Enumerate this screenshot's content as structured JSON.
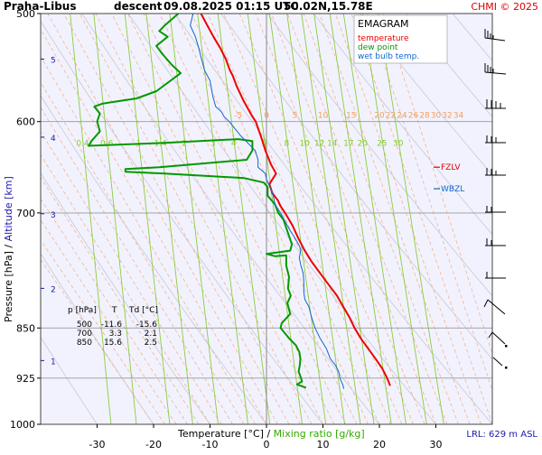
{
  "header": {
    "station": "Praha-Libus",
    "mode": "descent",
    "datetime": "09.08.2025 01:15 UTC",
    "location": "50.02N,15.78E",
    "credit": "CHMI © 2025"
  },
  "legend": {
    "title": "EMAGRAM",
    "items": [
      {
        "label": "temperature",
        "color": "#ee0000"
      },
      {
        "label": "dew point",
        "color": "#009900"
      },
      {
        "label": "wet bulb temp.",
        "color": "#1166cc"
      }
    ]
  },
  "axes": {
    "y_label": "Pressure [hPa]",
    "y_label_sep": " / ",
    "alt_label": "Altitude [km]",
    "x_label": "Temperature [°C]",
    "x_label_sep": " / ",
    "mix_label": "Mixing ratio [g/kg]"
  },
  "lrl": "LRL: 629 m ASL",
  "markers": [
    {
      "label": "FZLV",
      "color": "#dd0000",
      "pressure": 648
    },
    {
      "label": "WBZL",
      "color": "#1166cc",
      "pressure": 672
    }
  ],
  "table": {
    "headers": [
      "p [hPa]",
      "T",
      "Td [°C]"
    ],
    "rows": [
      [
        "500",
        "-11.6",
        "-15.6"
      ],
      [
        "700",
        "3.3",
        "2.1"
      ],
      [
        "850",
        "15.6",
        "2.5"
      ]
    ]
  },
  "chart_data": {
    "type": "line",
    "title": "EMAGRAM",
    "xlabel": "Temperature [°C]",
    "ylabel": "Pressure [hPa]",
    "xlim": [
      -40,
      40
    ],
    "ylim": [
      500,
      1000
    ],
    "y_scale": "log",
    "x_ticks": [
      -30,
      -20,
      -10,
      0,
      10,
      20,
      30
    ],
    "p_ticks": [
      500,
      600,
      700,
      850,
      925,
      1000
    ],
    "alt_ticks": [
      {
        "km": "1",
        "p": 898
      },
      {
        "km": "2",
        "p": 795
      },
      {
        "km": "3",
        "p": 701
      },
      {
        "km": "4",
        "p": 616
      },
      {
        "km": "5",
        "p": 540
      }
    ],
    "isotherm_labels": [
      -5,
      0,
      5,
      10,
      15,
      20,
      22,
      24,
      26,
      28,
      30,
      32,
      34
    ],
    "isotherm_label_p": 596,
    "mixing_ratio_labels": [
      "0.4",
      "0.6",
      "1",
      "1.4",
      "2",
      "3",
      "4",
      "6",
      "8",
      "10",
      "12",
      "14",
      "17",
      "20",
      "25",
      "30"
    ],
    "series": [
      {
        "name": "temperature",
        "color": "#ee0000",
        "points": [
          [
            -11.6,
            500
          ],
          [
            -10.5,
            510
          ],
          [
            -9.4,
            520
          ],
          [
            -8.2,
            530
          ],
          [
            -7.2,
            540
          ],
          [
            -6.5,
            550
          ],
          [
            -6.0,
            555
          ],
          [
            -5.3,
            565
          ],
          [
            -4.0,
            580
          ],
          [
            -3.0,
            590
          ],
          [
            -2.5,
            595
          ],
          [
            -1.9,
            600
          ],
          [
            -1.0,
            615
          ],
          [
            -0.2,
            630
          ],
          [
            0.8,
            645
          ],
          [
            1.7,
            655
          ],
          [
            1.2,
            660
          ],
          [
            0.5,
            667
          ],
          [
            0.8,
            672
          ],
          [
            1.0,
            677
          ],
          [
            2.0,
            685
          ],
          [
            2.5,
            692
          ],
          [
            3.3,
            700
          ],
          [
            4.6,
            715
          ],
          [
            5.6,
            730
          ],
          [
            6.7,
            745
          ],
          [
            8.0,
            760
          ],
          [
            9.5,
            775
          ],
          [
            11.0,
            790
          ],
          [
            12.5,
            805
          ],
          [
            13.6,
            820
          ],
          [
            14.7,
            835
          ],
          [
            15.6,
            850
          ],
          [
            16.7,
            865
          ],
          [
            18.0,
            880
          ],
          [
            19.3,
            895
          ],
          [
            20.5,
            910
          ],
          [
            21.2,
            922
          ],
          [
            21.6,
            930
          ],
          [
            21.9,
            937
          ]
        ]
      },
      {
        "name": "dew point",
        "color": "#009900",
        "points": [
          [
            -15.6,
            500
          ],
          [
            -18,
            510
          ],
          [
            -19,
            515
          ],
          [
            -17.5,
            520
          ],
          [
            -19.5,
            528
          ],
          [
            -18.5,
            535
          ],
          [
            -16.8,
            545
          ],
          [
            -15.2,
            553
          ],
          [
            -19.5,
            570
          ],
          [
            -23,
            577
          ],
          [
            -29,
            582
          ],
          [
            -30.5,
            585
          ],
          [
            -29.5,
            592
          ],
          [
            -30,
            600
          ],
          [
            -29.5,
            610
          ],
          [
            -31,
            620
          ],
          [
            -31.5,
            625
          ],
          [
            -18,
            622
          ],
          [
            -5,
            618
          ],
          [
            -2.5,
            620
          ],
          [
            -2.5,
            630
          ],
          [
            -3.5,
            640
          ],
          [
            -19,
            648
          ],
          [
            -25,
            650
          ],
          [
            -25,
            653
          ],
          [
            -18,
            655
          ],
          [
            -4,
            660
          ],
          [
            -0.5,
            665
          ],
          [
            0.2,
            670
          ],
          [
            0.2,
            680
          ],
          [
            1.5,
            690
          ],
          [
            2.1,
            700
          ],
          [
            3.0,
            708
          ],
          [
            3.5,
            718
          ],
          [
            4.0,
            728
          ],
          [
            4.5,
            738
          ],
          [
            4.2,
            746
          ],
          [
            0,
            750
          ],
          [
            1.5,
            753
          ],
          [
            3.5,
            752
          ],
          [
            3.5,
            765
          ],
          [
            4.0,
            780
          ],
          [
            3.8,
            795
          ],
          [
            4.3,
            805
          ],
          [
            3.7,
            815
          ],
          [
            4.2,
            830
          ],
          [
            2.7,
            843
          ],
          [
            2.5,
            850
          ],
          [
            4.0,
            865
          ],
          [
            5.2,
            875
          ],
          [
            5.8,
            885
          ],
          [
            6.0,
            895
          ],
          [
            5.9,
            905
          ],
          [
            5.7,
            915
          ],
          [
            6.0,
            922
          ],
          [
            6.3,
            930
          ],
          [
            5.4,
            935
          ],
          [
            7.0,
            940
          ]
        ]
      },
      {
        "name": "wet bulb temp.",
        "color": "#1166cc",
        "points": [
          [
            -13.0,
            500
          ],
          [
            -13.5,
            510
          ],
          [
            -12.6,
            520
          ],
          [
            -12.0,
            530
          ],
          [
            -11.5,
            540
          ],
          [
            -11.0,
            550
          ],
          [
            -10.0,
            560
          ],
          [
            -9.5,
            575
          ],
          [
            -9.0,
            585
          ],
          [
            -8.0,
            590
          ],
          [
            -7.5,
            595
          ],
          [
            -6.6,
            600
          ],
          [
            -4.5,
            615
          ],
          [
            -2.0,
            630
          ],
          [
            -1.5,
            640
          ],
          [
            -1.5,
            648
          ],
          [
            -0.2,
            655
          ],
          [
            0.0,
            662
          ],
          [
            0.8,
            672
          ],
          [
            1.2,
            680
          ],
          [
            1.5,
            690
          ],
          [
            2.5,
            700
          ],
          [
            3.3,
            710
          ],
          [
            4.1,
            720
          ],
          [
            5.0,
            730
          ],
          [
            5.8,
            740
          ],
          [
            6.1,
            745
          ],
          [
            5.8,
            755
          ],
          [
            6.1,
            765
          ],
          [
            6.5,
            775
          ],
          [
            6.6,
            785
          ],
          [
            6.6,
            800
          ],
          [
            6.8,
            810
          ],
          [
            7.5,
            820
          ],
          [
            8.0,
            835
          ],
          [
            8.6,
            850
          ],
          [
            9.5,
            865
          ],
          [
            10.6,
            880
          ],
          [
            11.3,
            895
          ],
          [
            12.2,
            905
          ],
          [
            12.8,
            915
          ],
          [
            13.0,
            925
          ],
          [
            13.5,
            935
          ],
          [
            13.7,
            942
          ]
        ]
      }
    ]
  }
}
